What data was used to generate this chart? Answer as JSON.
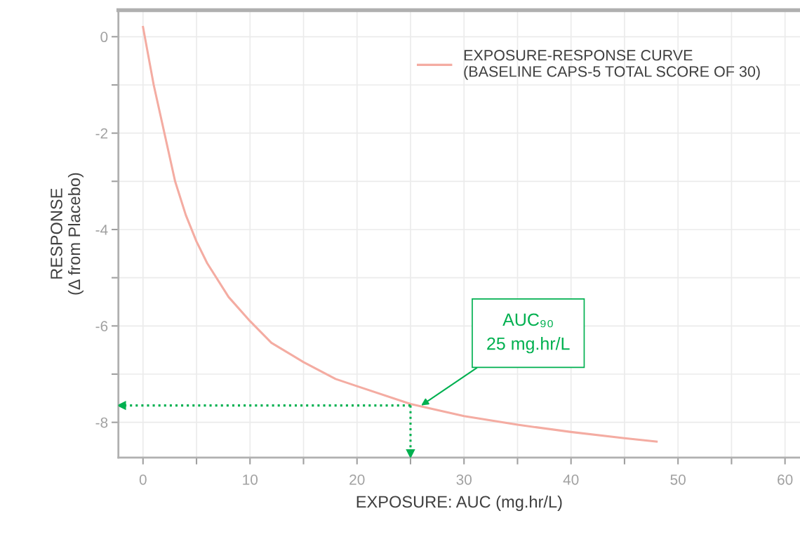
{
  "chart_data": {
    "type": "line",
    "xlabel": "EXPOSURE: AUC (mg.hr/L)",
    "ylabel": "RESPONSE\n(Δ from Placebo)",
    "x": [
      0,
      1,
      2,
      3,
      4,
      5,
      6,
      8,
      10,
      12,
      15,
      18,
      20,
      25,
      30,
      35,
      40,
      45,
      48
    ],
    "series": [
      {
        "name": "EXPOSURE-RESPONSE CURVE\n(BASELINE CAPS-5 TOTAL SCORE OF 30)",
        "color": "#f4aca2",
        "values": [
          0.2,
          -1.0,
          -2.0,
          -3.0,
          -3.7,
          -4.25,
          -4.7,
          -5.4,
          -5.9,
          -6.35,
          -6.75,
          -7.1,
          -7.25,
          -7.62,
          -7.87,
          -8.05,
          -8.2,
          -8.33,
          -8.4
        ]
      }
    ],
    "xlim": [
      -2.3,
      61.4
    ],
    "ylim": [
      -8.73,
      0.55
    ],
    "xticks": [
      0,
      {
        "value": 5,
        "label": null
      },
      10,
      {
        "value": 15,
        "label": null
      },
      20,
      {
        "value": 25,
        "label": null
      },
      30,
      {
        "value": 35,
        "label": null
      },
      40,
      {
        "value": 45,
        "label": null
      },
      50,
      {
        "value": 55,
        "label": null
      },
      60
    ],
    "yticks": [
      {
        "value": -8,
        "label": "-8"
      },
      {
        "value": -7,
        "label": null
      },
      {
        "value": -6,
        "label": "-6"
      },
      {
        "value": -5,
        "label": null
      },
      {
        "value": -4,
        "label": "-4"
      },
      {
        "value": -3,
        "label": null
      },
      {
        "value": -2,
        "label": "-2"
      },
      {
        "value": -1,
        "label": null
      },
      0
    ],
    "ref_lines": [
      {
        "axis": "y",
        "value": -7.65,
        "color": "#00b050",
        "line_style": "dotted"
      },
      {
        "axis": "x",
        "value": 25,
        "color": "#00b050",
        "line_style": "dotted"
      }
    ],
    "annotations": [
      {
        "text": "AUC₉₀\n25 mg.hr/L",
        "x": 26,
        "y": -7.65
      }
    ],
    "grid": true,
    "legend": "top right",
    "marker": "none",
    "line_style": "solid"
  }
}
